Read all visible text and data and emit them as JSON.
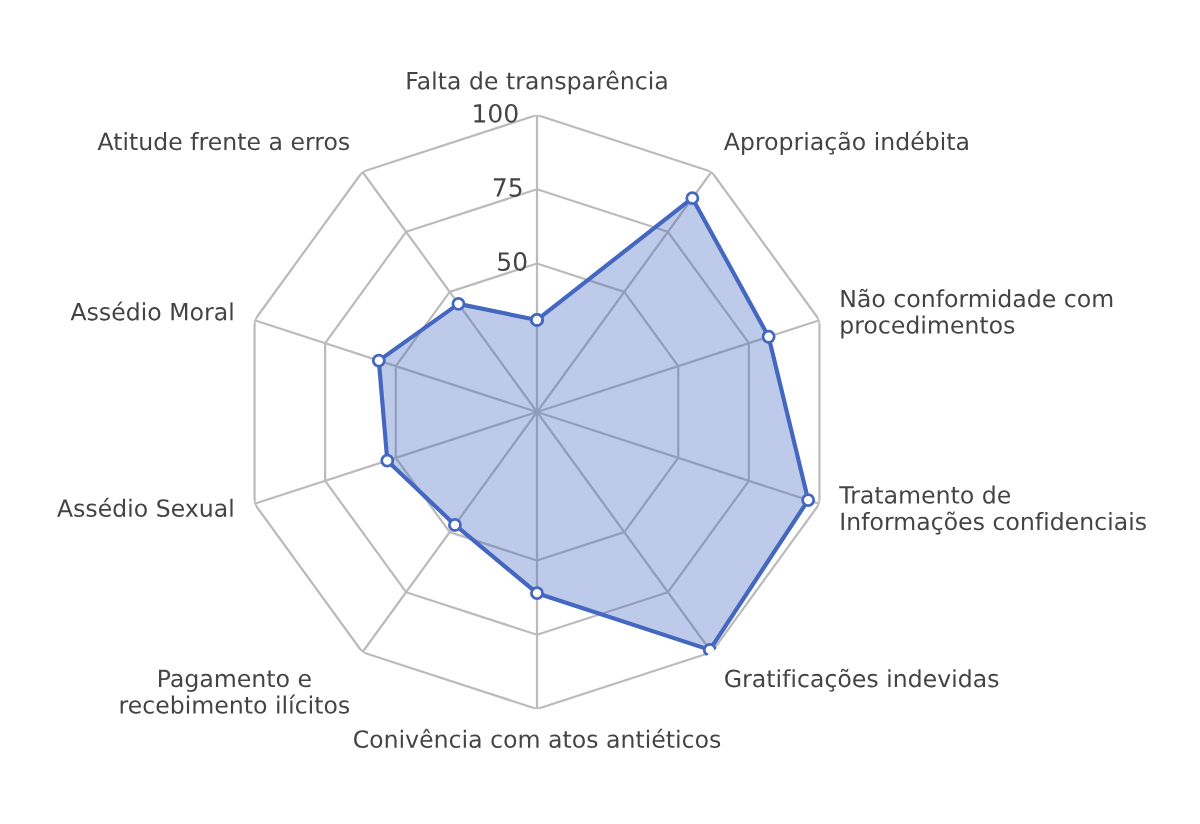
{
  "chart_data": {
    "type": "radar",
    "categories": [
      "Falta de transparência",
      "Apropriação indébita",
      "Não conformidade com\nprocedimentos",
      "Tratamento de\nInformações confidenciais",
      "Gratificações indevidas",
      "Conivência com atos antiéticos",
      "Pagamento e\nrecebimento ilícitos",
      "Assédio Sexual",
      "Assédio Moral",
      "Atitude frente a erros"
    ],
    "series": [
      {
        "color": "#4468c0",
        "values": [
          31,
          89,
          82,
          96,
          99,
          61,
          47,
          53,
          56,
          45
        ]
      }
    ],
    "ylim": [
      0,
      100
    ],
    "yticks": [
      50,
      75,
      100
    ],
    "marker": "circle",
    "line_style": "solid"
  }
}
